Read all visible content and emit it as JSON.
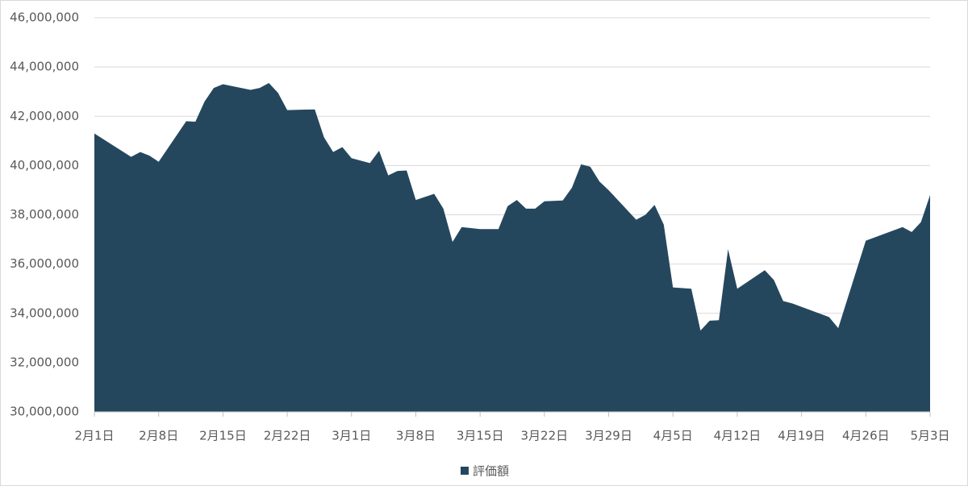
{
  "chart_data": {
    "type": "area",
    "x": [
      "2月1日",
      "2月5日",
      "2月6日",
      "2月7日",
      "2月8日",
      "2月11日",
      "2月12日",
      "2月13日",
      "2月14日",
      "2月15日",
      "2月18日",
      "2月19日",
      "2月20日",
      "2月21日",
      "2月22日",
      "2月25日",
      "2月26日",
      "2月27日",
      "2月28日",
      "3月1日",
      "3月3日",
      "3月4日",
      "3月5日",
      "3月6日",
      "3月7日",
      "3月8日",
      "3月10日",
      "3月11日",
      "3月12日",
      "3月13日",
      "3月15日",
      "3月17日",
      "3月18日",
      "3月19日",
      "3月20日",
      "3月21日",
      "3月22日",
      "3月24日",
      "3月25日",
      "3月26日",
      "3月27日",
      "3月28日",
      "3月29日",
      "4月1日",
      "4月2日",
      "4月3日",
      "4月4日",
      "4月5日",
      "4月7日",
      "4月8日",
      "4月9日",
      "4月10日",
      "4月11日",
      "4月12日",
      "4月15日",
      "4月16日",
      "4月17日",
      "4月18日",
      "4月22日",
      "4月23日",
      "4月26日",
      "4月30日",
      "5月1日",
      "5月2日",
      "5月3日"
    ],
    "series": [
      {
        "name": "評価額",
        "color": "#25475e",
        "values": [
          41300000,
          40350000,
          40550000,
          40400000,
          40150000,
          41800000,
          41780000,
          42600000,
          43150000,
          43300000,
          43070000,
          43150000,
          43350000,
          42950000,
          42250000,
          42280000,
          41150000,
          40550000,
          40750000,
          40300000,
          40100000,
          40600000,
          39600000,
          39780000,
          39800000,
          38600000,
          38850000,
          38250000,
          36900000,
          37500000,
          37420000,
          37420000,
          38350000,
          38600000,
          38250000,
          38250000,
          38550000,
          38580000,
          39100000,
          40050000,
          39950000,
          39350000,
          39000000,
          37800000,
          38000000,
          38400000,
          37600000,
          35050000,
          35000000,
          33300000,
          33700000,
          33720000,
          36600000,
          35000000,
          35750000,
          35350000,
          34500000,
          34400000,
          33850000,
          33400000,
          36950000,
          37500000,
          37300000,
          37700000,
          38800000
        ]
      }
    ],
    "xticks": [
      "2月1日",
      "2月8日",
      "2月15日",
      "2月22日",
      "3月1日",
      "3月8日",
      "3月15日",
      "3月22日",
      "3月29日",
      "4月5日",
      "4月12日",
      "4月19日",
      "4月26日",
      "5月3日"
    ],
    "ylim": [
      30000000,
      46000000
    ],
    "yticks": [
      {
        "value": 30000000,
        "label": "30,000,000"
      },
      {
        "value": 32000000,
        "label": "32,000,000"
      },
      {
        "value": 34000000,
        "label": "34,000,000"
      },
      {
        "value": 36000000,
        "label": "36,000,000"
      },
      {
        "value": 38000000,
        "label": "38,000,000"
      },
      {
        "value": 40000000,
        "label": "40,000,000"
      },
      {
        "value": 42000000,
        "label": "42,000,000"
      },
      {
        "value": 44000000,
        "label": "44,000,000"
      },
      {
        "value": 46000000,
        "label": "46,000,000"
      }
    ],
    "grid": true,
    "legend": "bottom"
  }
}
